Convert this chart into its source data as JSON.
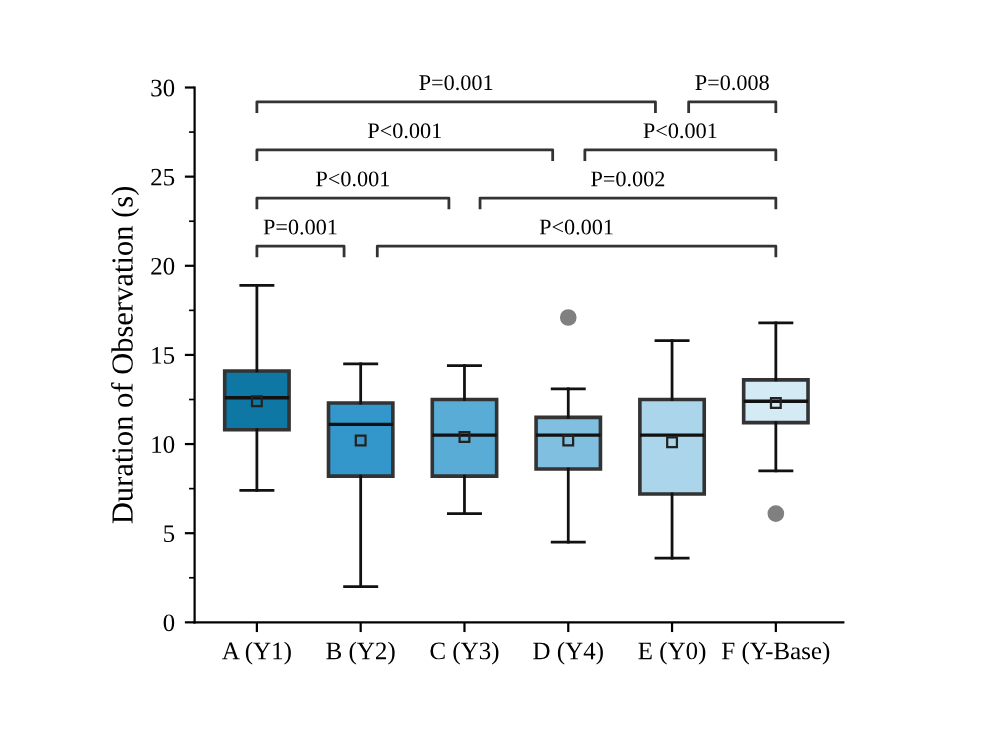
{
  "chart_data": {
    "type": "box",
    "ylabel": "Duration of Observation (s)",
    "categories": [
      "A (Y1)",
      "B (Y2)",
      "C (Y3)",
      "D (Y4)",
      "E (Y0)",
      "F (Y-Base)"
    ],
    "colors": [
      "#0e77a3",
      "#3497cc",
      "#58acd6",
      "#80bfe0",
      "#aad5ea",
      "#d4eaf5"
    ],
    "boxes": [
      {
        "low": 7.4,
        "q1": 10.8,
        "median": 12.6,
        "q3": 14.1,
        "high": 18.9,
        "mean": 12.4
      },
      {
        "low": 2.0,
        "q1": 8.2,
        "median": 11.1,
        "q3": 12.3,
        "high": 14.5,
        "mean": 10.2
      },
      {
        "low": 6.1,
        "q1": 8.2,
        "median": 10.5,
        "q3": 12.5,
        "high": 14.4,
        "mean": 10.4
      },
      {
        "low": 4.5,
        "q1": 8.6,
        "median": 10.5,
        "q3": 11.5,
        "high": 13.1,
        "mean": 10.2,
        "outliers": [
          17.1
        ]
      },
      {
        "low": 3.6,
        "q1": 7.2,
        "median": 10.5,
        "q3": 12.5,
        "high": 15.8,
        "mean": 10.1
      },
      {
        "low": 8.5,
        "q1": 11.2,
        "median": 12.4,
        "q3": 13.6,
        "high": 16.8,
        "mean": 12.3,
        "outliers": [
          6.1
        ]
      }
    ],
    "ylim": [
      0,
      30
    ],
    "yticks": [
      0,
      5,
      10,
      15,
      20,
      25,
      30
    ],
    "grid": false,
    "annotations": [
      "P=0.001",
      "P=0.008",
      "P<0.001",
      "P<0.001",
      "P<0.001",
      "P=0.002",
      "P=0.001",
      "P<0.001"
    ]
  }
}
